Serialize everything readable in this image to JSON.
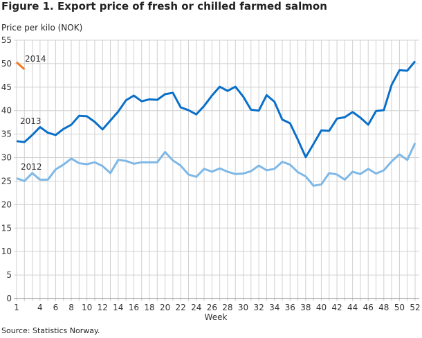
{
  "chart_data": {
    "type": "line",
    "title": "Figure 1. Export price of fresh or chilled farmed salmon",
    "ylabel": "Price per kilo (NOK)",
    "xlabel": "Week",
    "source": "Source: Statistics Norway.",
    "ylim": [
      0,
      55
    ],
    "yticks": [
      0,
      5,
      10,
      15,
      20,
      25,
      30,
      35,
      40,
      45,
      50,
      55
    ],
    "xlim": [
      1,
      52
    ],
    "xticks": [
      1,
      4,
      6,
      8,
      10,
      12,
      14,
      16,
      18,
      20,
      22,
      24,
      26,
      28,
      30,
      32,
      34,
      36,
      38,
      40,
      42,
      44,
      46,
      48,
      50,
      52
    ],
    "grid": true,
    "series": [
      {
        "name": "2012",
        "color": "#7fb8e6",
        "values": [
          25.6,
          25.0,
          26.7,
          25.3,
          25.3,
          27.5,
          28.5,
          29.8,
          28.8,
          28.6,
          29.0,
          28.2,
          26.7,
          29.5,
          29.3,
          28.7,
          29.0,
          29.0,
          29.0,
          31.2,
          29.4,
          28.3,
          26.4,
          25.9,
          27.6,
          27.0,
          27.7,
          27.0,
          26.5,
          26.6,
          27.1,
          28.3,
          27.3,
          27.6,
          29.1,
          28.5,
          26.9,
          26.0,
          24.0,
          24.3,
          26.7,
          26.4,
          25.3,
          27.0,
          26.5,
          27.6,
          26.6,
          27.3,
          29.2,
          30.7,
          29.5,
          33.1
        ]
      },
      {
        "name": "2013",
        "color": "#0a6fc9",
        "values": [
          33.5,
          33.3,
          34.8,
          36.5,
          35.3,
          34.8,
          36.1,
          37.0,
          38.9,
          38.8,
          37.6,
          36.0,
          37.9,
          39.8,
          42.2,
          43.2,
          42.0,
          42.4,
          42.3,
          43.5,
          43.8,
          40.7,
          40.1,
          39.2,
          41.0,
          43.2,
          45.1,
          44.2,
          45.1,
          43.0,
          40.2,
          40.0,
          43.3,
          41.9,
          38.1,
          37.3,
          33.8,
          30.1,
          32.9,
          35.8,
          35.7,
          38.3,
          38.6,
          39.7,
          38.5,
          37.0,
          39.9,
          40.1,
          45.5,
          48.6,
          48.5,
          50.5
        ]
      },
      {
        "name": "2014",
        "color": "#f07a22",
        "values": [
          50.3,
          48.8
        ]
      }
    ]
  }
}
